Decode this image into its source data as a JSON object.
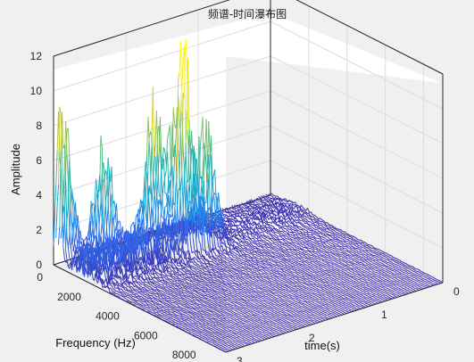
{
  "chart_data": {
    "type": "waterfall",
    "title": "频谱-时间瀑布图",
    "xlabel": "Frequency (Hz)",
    "ylabel": "time(s)",
    "zlabel": "Amplitude",
    "xlim": [
      0,
      9000
    ],
    "ylim": [
      0,
      3
    ],
    "zlim": [
      0,
      12
    ],
    "x_ticks": [
      "0",
      "2000",
      "4000",
      "6000",
      "8000"
    ],
    "y_ticks": [
      "0",
      "1",
      "2",
      "3"
    ],
    "z_ticks": [
      "0",
      "2",
      "4",
      "6",
      "8",
      "10",
      "12"
    ],
    "colormap": [
      "#3d26a8",
      "#2f6ef0",
      "#16a3d6",
      "#2ab7a8",
      "#91c55c",
      "#f2d026",
      "#f9fb0e"
    ],
    "background": "#ffffff",
    "grid": true,
    "peaks": [
      {
        "frequency": 250,
        "time": 2.95,
        "amplitude": 10.2
      },
      {
        "frequency": 1300,
        "time": 1.95,
        "amplitude": 8.3
      },
      {
        "frequency": 1600,
        "time": 1.65,
        "amplitude": 12.8
      },
      {
        "frequency": 2200,
        "time": 1.5,
        "amplitude": 8.5
      },
      {
        "frequency": 700,
        "time": 2.5,
        "amplitude": 7.0
      }
    ]
  }
}
